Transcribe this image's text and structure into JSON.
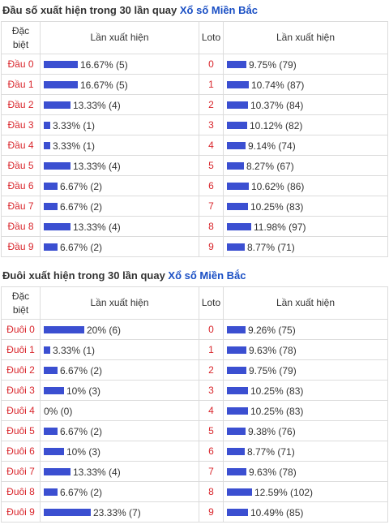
{
  "colors": {
    "bar": "#3b4fd1",
    "label": "#d9262c",
    "link": "#1a4fc4"
  },
  "tables": [
    {
      "title_prefix": "Đầu số xuất hiện trong 30 lần quay ",
      "title_link": "Xổ số Miền Bắc",
      "headers": {
        "col1_line1": "Đặc",
        "col1_line2": "biệt",
        "col2": "Lần xuất hiện",
        "col3": "Loto",
        "col4": "Lần xuất hiện"
      },
      "rows": [
        {
          "label": "Đầu 0",
          "pct_text": "16.67% (5)",
          "fraction": 0.1667,
          "loto": "0",
          "loto_text": "9.75% (79)",
          "loto_fraction": 0.0975
        },
        {
          "label": "Đầu 1",
          "pct_text": "16.67% (5)",
          "fraction": 0.1667,
          "loto": "1",
          "loto_text": "10.74% (87)",
          "loto_fraction": 0.1074
        },
        {
          "label": "Đầu 2",
          "pct_text": "13.33% (4)",
          "fraction": 0.1333,
          "loto": "2",
          "loto_text": "10.37% (84)",
          "loto_fraction": 0.1037
        },
        {
          "label": "Đầu 3",
          "pct_text": "3.33% (1)",
          "fraction": 0.0333,
          "loto": "3",
          "loto_text": "10.12% (82)",
          "loto_fraction": 0.1012
        },
        {
          "label": "Đầu 4",
          "pct_text": "3.33% (1)",
          "fraction": 0.0333,
          "loto": "4",
          "loto_text": "9.14% (74)",
          "loto_fraction": 0.0914
        },
        {
          "label": "Đầu 5",
          "pct_text": "13.33% (4)",
          "fraction": 0.1333,
          "loto": "5",
          "loto_text": "8.27% (67)",
          "loto_fraction": 0.0827
        },
        {
          "label": "Đầu 6",
          "pct_text": "6.67% (2)",
          "fraction": 0.0667,
          "loto": "6",
          "loto_text": "10.62% (86)",
          "loto_fraction": 0.1062
        },
        {
          "label": "Đầu 7",
          "pct_text": "6.67% (2)",
          "fraction": 0.0667,
          "loto": "7",
          "loto_text": "10.25% (83)",
          "loto_fraction": 0.1025
        },
        {
          "label": "Đầu 8",
          "pct_text": "13.33% (4)",
          "fraction": 0.1333,
          "loto": "8",
          "loto_text": "11.98% (97)",
          "loto_fraction": 0.1198
        },
        {
          "label": "Đầu 9",
          "pct_text": "6.67% (2)",
          "fraction": 0.0667,
          "loto": "9",
          "loto_text": "8.77% (71)",
          "loto_fraction": 0.0877
        }
      ]
    },
    {
      "title_prefix": "Đuôi xuất hiện trong 30 lần quay ",
      "title_link": "Xổ số Miền Bắc",
      "headers": {
        "col1_line1": "Đặc",
        "col1_line2": "biệt",
        "col2": "Lần xuất hiện",
        "col3": "Loto",
        "col4": "Lần xuất hiện"
      },
      "rows": [
        {
          "label": "Đuôi 0",
          "pct_text": "20% (6)",
          "fraction": 0.2,
          "loto": "0",
          "loto_text": "9.26% (75)",
          "loto_fraction": 0.0926
        },
        {
          "label": "Đuôi 1",
          "pct_text": "3.33% (1)",
          "fraction": 0.0333,
          "loto": "1",
          "loto_text": "9.63% (78)",
          "loto_fraction": 0.0963
        },
        {
          "label": "Đuôi 2",
          "pct_text": "6.67% (2)",
          "fraction": 0.0667,
          "loto": "2",
          "loto_text": "9.75% (79)",
          "loto_fraction": 0.0975
        },
        {
          "label": "Đuôi 3",
          "pct_text": "10% (3)",
          "fraction": 0.1,
          "loto": "3",
          "loto_text": "10.25% (83)",
          "loto_fraction": 0.1025
        },
        {
          "label": "Đuôi 4",
          "pct_text": "0% (0)",
          "fraction": 0.0,
          "loto": "4",
          "loto_text": "10.25% (83)",
          "loto_fraction": 0.1025
        },
        {
          "label": "Đuôi 5",
          "pct_text": "6.67% (2)",
          "fraction": 0.0667,
          "loto": "5",
          "loto_text": "9.38% (76)",
          "loto_fraction": 0.0938
        },
        {
          "label": "Đuôi 6",
          "pct_text": "10% (3)",
          "fraction": 0.1,
          "loto": "6",
          "loto_text": "8.77% (71)",
          "loto_fraction": 0.0877
        },
        {
          "label": "Đuôi 7",
          "pct_text": "13.33% (4)",
          "fraction": 0.1333,
          "loto": "7",
          "loto_text": "9.63% (78)",
          "loto_fraction": 0.0963
        },
        {
          "label": "Đuôi 8",
          "pct_text": "6.67% (2)",
          "fraction": 0.0667,
          "loto": "8",
          "loto_text": "12.59% (102)",
          "loto_fraction": 0.1259
        },
        {
          "label": "Đuôi 9",
          "pct_text": "23.33% (7)",
          "fraction": 0.2333,
          "loto": "9",
          "loto_text": "10.49% (85)",
          "loto_fraction": 0.1049
        }
      ]
    }
  ]
}
